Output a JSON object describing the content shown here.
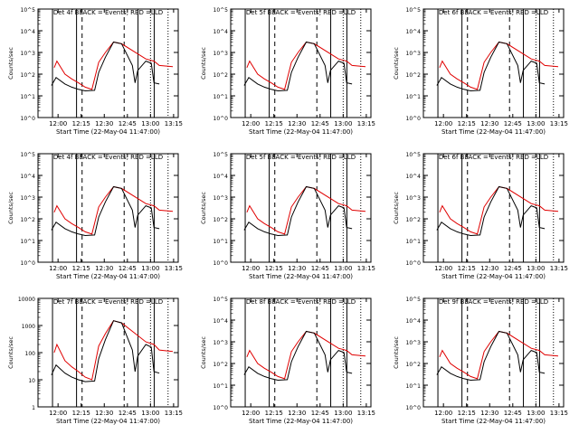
{
  "chart_data": [
    {
      "type": "line",
      "title": "Det 4f BLACK = Events, RED =LLD",
      "ylabel": "Counts/sec",
      "xlabel": "Start Time (22-May-04 11:47:00)",
      "x_ticks": [
        "12:00",
        "12:15",
        "12:30",
        "12:45",
        "13:00",
        "13:15"
      ],
      "y_ticks": [
        "10^0",
        "10^1",
        "10^2",
        "10^3",
        "10^4",
        "10^5"
      ],
      "y_scale": "log",
      "ylim": [
        1,
        100000
      ],
      "series": [
        {
          "color": "#000000",
          "values": [
            [
              12,
              30
            ],
            [
              12.17,
              70
            ],
            [
              12.5,
              35
            ],
            [
              12.75,
              25
            ],
            [
              13,
              20
            ],
            [
              13.25,
              17
            ],
            [
              13.6,
              18
            ],
            [
              13.75,
              120
            ],
            [
              14,
              600
            ],
            [
              14.3,
              3000
            ],
            [
              14.6,
              2500
            ],
            [
              15,
              250
            ],
            [
              15.1,
              40
            ],
            [
              15.2,
              150
            ],
            [
              15.5,
              400
            ],
            [
              15.7,
              320
            ],
            [
              15.8,
              40
            ],
            [
              16,
              35
            ]
          ]
        },
        {
          "color": "#e00000",
          "values": [
            [
              12.1,
              200
            ],
            [
              12.2,
              400
            ],
            [
              12.5,
              100
            ],
            [
              12.75,
              60
            ],
            [
              13,
              40
            ],
            [
              13.25,
              25
            ],
            [
              13.5,
              20
            ],
            [
              13.75,
              350
            ],
            [
              14,
              1000
            ],
            [
              14.3,
              3000
            ],
            [
              14.6,
              2500
            ],
            [
              15.5,
              500
            ],
            [
              15.8,
              400
            ],
            [
              16,
              250
            ],
            [
              16.5,
              220
            ]
          ]
        }
      ]
    },
    {
      "type": "line",
      "title": "Det 5f BLACK = Events, RED =LLD",
      "ylabel": "Counts/sec",
      "xlabel": "Start Time (22-May-04 11:47:00)",
      "x_ticks": [
        "12:00",
        "12:15",
        "12:30",
        "12:45",
        "13:00",
        "13:15"
      ],
      "y_ticks": [
        "10^0",
        "10^1",
        "10^2",
        "10^3",
        "10^4",
        "10^5"
      ],
      "y_scale": "log",
      "ylim": [
        1,
        100000
      ]
    },
    {
      "type": "line",
      "title": "Det 6f BLACK = Events, RED =LLD",
      "ylabel": "Counts/sec",
      "xlabel": "Start Time (22-May-04 11:47:00)",
      "x_ticks": [
        "12:00",
        "12:15",
        "12:30",
        "12:45",
        "13:00",
        "13:15"
      ],
      "y_ticks": [
        "10^0",
        "10^1",
        "10^2",
        "10^3",
        "10^4",
        "10^5"
      ],
      "y_scale": "log",
      "ylim": [
        1,
        100000
      ]
    },
    {
      "type": "line",
      "title": "Det 4f BLACK = Events, RED =LLD",
      "ylabel": "Counts/sec",
      "xlabel": "Start Time (22-May-04 11:47:00)",
      "x_ticks": [
        "12:00",
        "12:15",
        "12:30",
        "12:45",
        "13:00",
        "13:15"
      ],
      "y_ticks": [
        "10^0",
        "10^1",
        "10^2",
        "10^3",
        "10^4",
        "10^5"
      ],
      "y_scale": "log",
      "ylim": [
        1,
        100000
      ]
    },
    {
      "type": "line",
      "title": "Det 5f BLACK = Events, RED =LLD",
      "ylabel": "Counts/sec",
      "xlabel": "Start Time (22-May-04 11:47:00)",
      "x_ticks": [
        "12:00",
        "12:15",
        "12:30",
        "12:45",
        "13:00",
        "13:15"
      ],
      "y_ticks": [
        "10^0",
        "10^1",
        "10^2",
        "10^3",
        "10^4",
        "10^5"
      ],
      "y_scale": "log",
      "ylim": [
        1,
        100000
      ]
    },
    {
      "type": "line",
      "title": "Det 6f BLACK = Events, RED =LLD",
      "ylabel": "Counts/sec",
      "xlabel": "Start Time (22-May-04 11:47:00)",
      "x_ticks": [
        "12:00",
        "12:15",
        "12:30",
        "12:45",
        "13:00",
        "13:15"
      ],
      "y_ticks": [
        "10^0",
        "10^1",
        "10^2",
        "10^3",
        "10^4",
        "10^5"
      ],
      "y_scale": "log",
      "ylim": [
        1,
        100000
      ]
    },
    {
      "type": "line",
      "title": "Det 7f BLACK = Events, RED =LLD",
      "ylabel": "Counts/sec",
      "xlabel": "Start Time (22-May-04 11:47:00)",
      "x_ticks": [
        "12:00",
        "12:15",
        "12:30",
        "12:45",
        "13:00",
        "13:15"
      ],
      "y_ticks": [
        "1",
        "10",
        "100",
        "1000",
        "10000"
      ],
      "y_scale": "log",
      "ylim": [
        1,
        10000
      ]
    },
    {
      "type": "line",
      "title": "Det 8f BLACK = Events, RED =LLD",
      "ylabel": "Counts/sec",
      "xlabel": "Start Time (22-May-04 11:47:00)",
      "x_ticks": [
        "12:00",
        "12:15",
        "12:30",
        "12:45",
        "13:00",
        "13:15"
      ],
      "y_ticks": [
        "10^0",
        "10^1",
        "10^2",
        "10^3",
        "10^4",
        "10^5"
      ],
      "y_scale": "log",
      "ylim": [
        1,
        100000
      ]
    },
    {
      "type": "line",
      "title": "Det 9f BLACK = Events, RED =LLD",
      "ylabel": "Counts/sec",
      "xlabel": "Start Time (22-May-04 11:47:00)",
      "x_ticks": [
        "12:00",
        "12:15",
        "12:30",
        "12:45",
        "13:00",
        "13:15"
      ],
      "y_ticks": [
        "10^0",
        "10^1",
        "10^2",
        "10^3",
        "10^4",
        "10^5"
      ],
      "y_scale": "log",
      "ylim": [
        1,
        100000
      ]
    }
  ],
  "colors": {
    "events": "#000000",
    "lld": "#e00000",
    "axes": "#000000"
  }
}
